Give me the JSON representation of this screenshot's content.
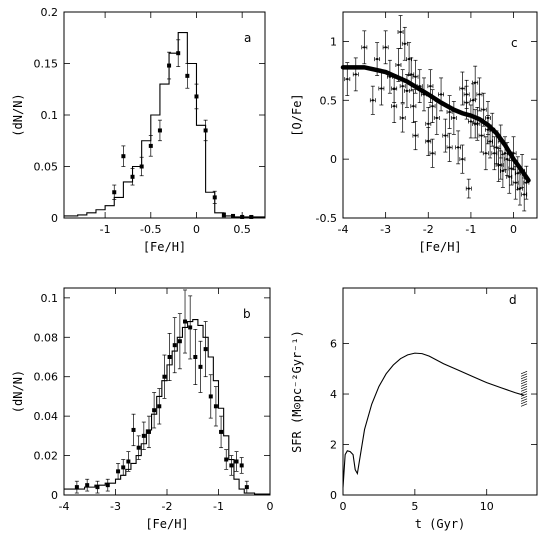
{
  "chart_data": [
    {
      "id": "a",
      "type": "histogram-with-points",
      "panel_label": "a",
      "xlabel": "[Fe/H]",
      "ylabel": "(dN/N)",
      "xlim": [
        -1.45,
        0.75
      ],
      "ylim": [
        0,
        0.2
      ],
      "xticks": [
        -1,
        -0.5,
        0,
        0.5
      ],
      "xtick_labels": [
        "-1",
        "-0.5",
        "0",
        "0.5"
      ],
      "yticks": [
        0,
        0.05,
        0.1,
        0.15,
        0.2
      ],
      "ytick_labels": [
        "0",
        "0.05",
        "0.1",
        "0.15",
        "0.2"
      ],
      "model_hist": {
        "edges": [
          -1.45,
          -1.3,
          -1.2,
          -1.1,
          -1.0,
          -0.9,
          -0.8,
          -0.7,
          -0.6,
          -0.5,
          -0.4,
          -0.3,
          -0.2,
          -0.1,
          0.0,
          0.1,
          0.2,
          0.3,
          0.4,
          0.5,
          0.75
        ],
        "values": [
          0.002,
          0.003,
          0.005,
          0.008,
          0.012,
          0.02,
          0.035,
          0.05,
          0.075,
          0.1,
          0.13,
          0.16,
          0.18,
          0.15,
          0.09,
          0.025,
          0.005,
          0.002,
          0.001,
          0.001
        ]
      },
      "points": {
        "x": [
          -0.9,
          -0.8,
          -0.7,
          -0.6,
          -0.5,
          -0.4,
          -0.3,
          -0.2,
          -0.1,
          0.0,
          0.1,
          0.2,
          0.3,
          0.4,
          0.5,
          0.6
        ],
        "y": [
          0.025,
          0.06,
          0.04,
          0.05,
          0.07,
          0.085,
          0.148,
          0.16,
          0.138,
          0.118,
          0.085,
          0.02,
          0.003,
          0.002,
          0.001,
          0.001
        ],
        "err": [
          0.007,
          0.01,
          0.008,
          0.009,
          0.01,
          0.01,
          0.013,
          0.013,
          0.012,
          0.012,
          0.01,
          0.006,
          0.002,
          0.001,
          0.001,
          0.001
        ]
      }
    },
    {
      "id": "b",
      "type": "histogram-with-points",
      "panel_label": "b",
      "xlabel": "[Fe/H]",
      "ylabel": "(dN/N)",
      "xlim": [
        -4,
        0
      ],
      "ylim": [
        0,
        0.105
      ],
      "xticks": [
        -4,
        -3,
        -2,
        -1,
        0
      ],
      "xtick_labels": [
        "-4",
        "-3",
        "-2",
        "-1",
        "0"
      ],
      "yticks": [
        0,
        0.02,
        0.04,
        0.06,
        0.08,
        0.1
      ],
      "ytick_labels": [
        "0",
        "0.02",
        "0.04",
        "0.06",
        "0.08",
        "0.1"
      ],
      "model_hist": {
        "edges": [
          -4.0,
          -3.8,
          -3.6,
          -3.4,
          -3.2,
          -3.0,
          -2.9,
          -2.8,
          -2.7,
          -2.6,
          -2.5,
          -2.4,
          -2.3,
          -2.2,
          -2.1,
          -2.0,
          -1.9,
          -1.8,
          -1.7,
          -1.6,
          -1.5,
          -1.4,
          -1.3,
          -1.2,
          -1.1,
          -1.0,
          -0.9,
          -0.8,
          -0.7,
          -0.6,
          -0.5,
          -0.3,
          0.0
        ],
        "values": [
          0.003,
          0.003,
          0.004,
          0.005,
          0.006,
          0.008,
          0.01,
          0.013,
          0.016,
          0.02,
          0.026,
          0.033,
          0.041,
          0.05,
          0.058,
          0.066,
          0.073,
          0.08,
          0.085,
          0.088,
          0.089,
          0.086,
          0.08,
          0.07,
          0.058,
          0.044,
          0.03,
          0.018,
          0.008,
          0.003,
          0.001,
          0.0005
        ]
      },
      "points": {
        "x": [
          -3.75,
          -3.55,
          -3.35,
          -3.15,
          -2.95,
          -2.85,
          -2.75,
          -2.65,
          -2.55,
          -2.45,
          -2.35,
          -2.25,
          -2.15,
          -2.05,
          -1.95,
          -1.85,
          -1.75,
          -1.65,
          -1.55,
          -1.45,
          -1.35,
          -1.25,
          -1.15,
          -1.05,
          -0.95,
          -0.85,
          -0.75,
          -0.65,
          -0.55,
          -0.45
        ],
        "y": [
          0.004,
          0.005,
          0.004,
          0.005,
          0.012,
          0.014,
          0.017,
          0.033,
          0.024,
          0.03,
          0.032,
          0.043,
          0.045,
          0.06,
          0.07,
          0.076,
          0.078,
          0.088,
          0.085,
          0.07,
          0.065,
          0.074,
          0.05,
          0.045,
          0.032,
          0.018,
          0.015,
          0.017,
          0.015,
          0.004
        ],
        "err": [
          0.003,
          0.003,
          0.003,
          0.003,
          0.004,
          0.004,
          0.005,
          0.008,
          0.006,
          0.007,
          0.008,
          0.009,
          0.009,
          0.011,
          0.012,
          0.014,
          0.014,
          0.016,
          0.016,
          0.014,
          0.013,
          0.014,
          0.011,
          0.01,
          0.008,
          0.005,
          0.005,
          0.005,
          0.004,
          0.003
        ]
      }
    },
    {
      "id": "c",
      "type": "scatter-with-model",
      "panel_label": "c",
      "xlabel": "[Fe/H]",
      "ylabel": "[O/Fe]",
      "xlim": [
        -4,
        0.55
      ],
      "ylim": [
        -0.5,
        1.25
      ],
      "xticks": [
        -4,
        -3,
        -2,
        -1,
        0
      ],
      "xtick_labels": [
        "-4",
        "-3",
        "-2",
        "-1",
        "0"
      ],
      "yticks": [
        -0.5,
        0,
        0.5,
        1
      ],
      "ytick_labels": [
        "-0.5",
        "0",
        "0.5",
        "1"
      ],
      "model_line": {
        "x": [
          -4.0,
          -3.5,
          -3.0,
          -2.5,
          -2.0,
          -1.7,
          -1.4,
          -1.2,
          -1.0,
          -0.8,
          -0.6,
          -0.4,
          -0.2,
          0.0,
          0.2,
          0.35
        ],
        "y": [
          0.78,
          0.78,
          0.74,
          0.66,
          0.55,
          0.48,
          0.42,
          0.39,
          0.37,
          0.34,
          0.29,
          0.22,
          0.12,
          0.0,
          -0.1,
          -0.18
        ]
      },
      "points": {
        "x": [
          -3.9,
          -3.7,
          -3.5,
          -3.2,
          -3.1,
          -3.0,
          -2.9,
          -2.8,
          -2.7,
          -2.65,
          -2.6,
          -2.55,
          -2.5,
          -2.45,
          -2.4,
          -2.35,
          -2.3,
          -2.2,
          -2.1,
          -2.0,
          -1.95,
          -1.9,
          -1.8,
          -1.7,
          -1.6,
          -1.5,
          -1.4,
          -1.3,
          -1.2,
          -1.1,
          -1.05,
          -1.0,
          -0.95,
          -0.9,
          -0.85,
          -0.8,
          -0.75,
          -0.7,
          -0.65,
          -0.6,
          -0.55,
          -0.5,
          -0.45,
          -0.4,
          -0.35,
          -0.3,
          -0.25,
          -0.2,
          -0.15,
          -0.1,
          -0.05,
          0.0,
          0.05,
          0.1,
          0.15,
          0.2,
          0.25,
          0.3,
          -2.6,
          -2.3,
          -1.9,
          -1.5,
          -1.2,
          -0.9,
          -0.6,
          -0.3,
          -3.3,
          -2.8,
          -2.0,
          -1.1
        ],
        "y": [
          0.68,
          0.72,
          0.95,
          0.85,
          0.6,
          0.95,
          0.7,
          0.45,
          0.8,
          1.08,
          0.62,
          0.98,
          0.58,
          0.85,
          0.72,
          0.45,
          0.7,
          0.62,
          0.55,
          0.3,
          0.62,
          0.45,
          0.35,
          0.55,
          0.2,
          0.4,
          0.35,
          0.1,
          0.6,
          0.48,
          -0.25,
          0.32,
          0.5,
          0.65,
          0.3,
          0.55,
          0.2,
          0.42,
          0.05,
          0.35,
          0.15,
          0.25,
          0.05,
          0.1,
          -0.05,
          0.15,
          -0.1,
          0.05,
          0.0,
          -0.15,
          -0.08,
          0.05,
          -0.2,
          -0.12,
          -0.25,
          -0.1,
          -0.3,
          -0.2,
          0.35,
          0.2,
          0.05,
          0.1,
          0.0,
          0.3,
          0.25,
          -0.05,
          0.5,
          0.6,
          0.15,
          0.55
        ],
        "err": [
          0.14,
          0.14,
          0.14,
          0.14,
          0.14,
          0.14,
          0.14,
          0.14,
          0.14,
          0.14,
          0.14,
          0.14,
          0.14,
          0.14,
          0.14,
          0.14,
          0.14,
          0.14,
          0.14,
          0.14,
          0.14,
          0.14,
          0.14,
          0.14,
          0.14,
          0.14,
          0.14,
          0.14,
          0.14,
          0.14,
          0.08,
          0.14,
          0.14,
          0.14,
          0.14,
          0.14,
          0.14,
          0.14,
          0.14,
          0.14,
          0.14,
          0.14,
          0.14,
          0.14,
          0.14,
          0.14,
          0.14,
          0.14,
          0.14,
          0.14,
          0.14,
          0.14,
          0.14,
          0.14,
          0.14,
          0.14,
          0.14,
          0.14,
          0.12,
          0.12,
          0.12,
          0.12,
          0.12,
          0.12,
          0.12,
          0.12,
          0.12,
          0.12,
          0.12,
          0.12
        ],
        "xerr": 0.06
      }
    },
    {
      "id": "d",
      "type": "line",
      "panel_label": "d",
      "xlabel": "t (Gyr)",
      "ylabel": "SFR (M⊙pc⁻²Gyr⁻¹)",
      "xlim": [
        0,
        13.5
      ],
      "ylim": [
        0,
        8.2
      ],
      "xticks": [
        0,
        5,
        10
      ],
      "xtick_labels": [
        "0",
        "5",
        "10"
      ],
      "yticks": [
        0,
        2,
        4,
        6
      ],
      "ytick_labels": [
        "0",
        "2",
        "4",
        "6"
      ],
      "series": {
        "x": [
          0.0,
          0.15,
          0.3,
          0.5,
          0.7,
          0.85,
          1.0,
          1.5,
          2.0,
          2.5,
          3.0,
          3.5,
          4.0,
          4.5,
          5.0,
          5.5,
          6.0,
          7.0,
          8.0,
          9.0,
          10.0,
          11.0,
          12.0,
          12.6
        ],
        "y": [
          0.3,
          1.6,
          1.75,
          1.72,
          1.6,
          1.0,
          0.85,
          2.6,
          3.6,
          4.3,
          4.8,
          5.15,
          5.4,
          5.55,
          5.62,
          5.6,
          5.5,
          5.2,
          4.95,
          4.7,
          4.45,
          4.25,
          4.05,
          3.95
        ]
      },
      "observed_range": {
        "x": 12.6,
        "y": [
          3.6,
          4.9
        ]
      }
    }
  ]
}
